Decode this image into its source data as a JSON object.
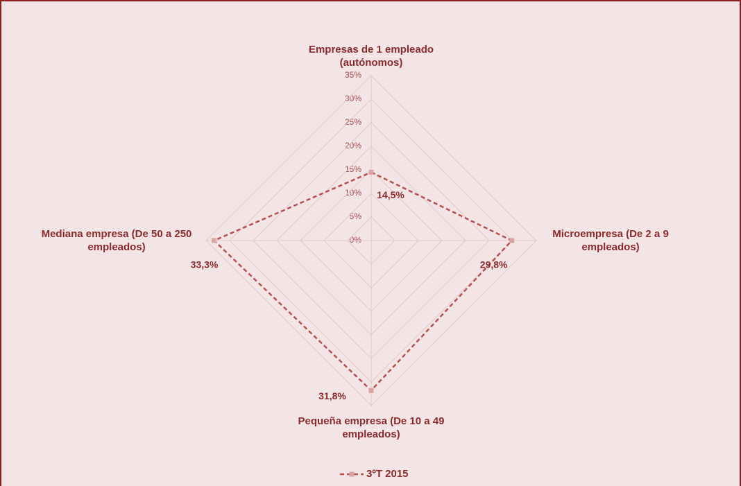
{
  "chart_data": {
    "type": "radar",
    "categories": [
      "Empresas de 1 empleado\n(autónomos)",
      "Microempresa (De 2 a 9\nempleados)",
      "Pequeña empresa (De 10 a 49\nempleados)",
      "Mediana empresa (De 50 a 250\nempleados)"
    ],
    "series": [
      {
        "name": "3ºT 2015",
        "color": "#b5504f",
        "values": [
          14.5,
          29.8,
          31.8,
          33.3
        ],
        "value_labels": [
          "14,5%",
          "29,8%",
          "31,8%",
          "33,3%"
        ]
      }
    ],
    "ylim": [
      0,
      35
    ],
    "yticks": [
      {
        "value": 0,
        "label": "0%"
      },
      {
        "value": 5,
        "label": "5%"
      },
      {
        "value": 10,
        "label": "10%"
      },
      {
        "value": 15,
        "label": "15%"
      },
      {
        "value": 20,
        "label": "20%"
      },
      {
        "value": 25,
        "label": "25%"
      },
      {
        "value": 30,
        "label": "30%"
      },
      {
        "value": 35,
        "label": "35%"
      }
    ],
    "grid": true,
    "legend": "bottom"
  }
}
